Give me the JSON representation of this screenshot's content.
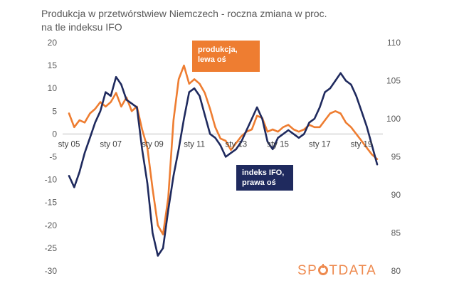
{
  "title_line1": "Produkcja  w przetwórstwiew Niemczech - roczna zmiana w proc.",
  "title_line2": "na tle indeksu IFO",
  "callouts": {
    "orange_line1": "produkcja,",
    "orange_line2": "lewa oś",
    "navy_line1": "indeks IFO,",
    "navy_line2": "prawa oś"
  },
  "logo": {
    "part1": "SP",
    "part2": "TDATA"
  },
  "colors": {
    "production": "#ee7d31",
    "ifo": "#1f2a5e",
    "zero_line": "#bfbfbf"
  },
  "chart_data": {
    "type": "line",
    "title": "Produkcja  w przetwórstwiew Niemczech - roczna zmiana w proc. na tle indeksu IFO",
    "x_ticks": [
      "sty 05",
      "sty 07",
      "sty 09",
      "sty 11",
      "sty 13",
      "sty 15",
      "sty 17",
      "sty 19"
    ],
    "x_range": [
      2005.0,
      2019.75
    ],
    "left_axis": {
      "ylim": [
        -30,
        20
      ],
      "ticks": [
        20,
        15,
        10,
        5,
        0,
        -5,
        -10,
        -15,
        -20,
        -25,
        -30
      ]
    },
    "right_axis": {
      "ylim": [
        80,
        110
      ],
      "ticks": [
        110,
        105,
        100,
        95,
        90,
        85,
        80
      ]
    },
    "grid": false,
    "series": [
      {
        "name": "produkcja, lewa oś",
        "axis": "left",
        "points": [
          [
            2005.0,
            4.5
          ],
          [
            2005.25,
            1.5
          ],
          [
            2005.5,
            3.0
          ],
          [
            2005.75,
            2.5
          ],
          [
            2006.0,
            4.5
          ],
          [
            2006.25,
            5.5
          ],
          [
            2006.5,
            7.0
          ],
          [
            2006.75,
            6.0
          ],
          [
            2007.0,
            7.0
          ],
          [
            2007.25,
            9.0
          ],
          [
            2007.5,
            6.0
          ],
          [
            2007.75,
            8.0
          ],
          [
            2008.0,
            5.0
          ],
          [
            2008.25,
            6.0
          ],
          [
            2008.5,
            1.0
          ],
          [
            2008.75,
            -3.0
          ],
          [
            2009.0,
            -12.0
          ],
          [
            2009.25,
            -20.0
          ],
          [
            2009.5,
            -22.0
          ],
          [
            2009.75,
            -14.0
          ],
          [
            2010.0,
            3.0
          ],
          [
            2010.25,
            12.0
          ],
          [
            2010.5,
            15.0
          ],
          [
            2010.75,
            11.0
          ],
          [
            2011.0,
            12.0
          ],
          [
            2011.25,
            11.0
          ],
          [
            2011.5,
            9.0
          ],
          [
            2011.75,
            5.5
          ],
          [
            2012.0,
            1.5
          ],
          [
            2012.25,
            -1.0
          ],
          [
            2012.5,
            -1.5
          ],
          [
            2012.75,
            -3.5
          ],
          [
            2013.0,
            -2.0
          ],
          [
            2013.25,
            -0.5
          ],
          [
            2013.5,
            0.5
          ],
          [
            2013.75,
            1.0
          ],
          [
            2014.0,
            4.0
          ],
          [
            2014.25,
            3.5
          ],
          [
            2014.5,
            0.5
          ],
          [
            2014.75,
            1.0
          ],
          [
            2015.0,
            0.5
          ],
          [
            2015.25,
            1.5
          ],
          [
            2015.5,
            2.0
          ],
          [
            2015.75,
            1.0
          ],
          [
            2016.0,
            0.5
          ],
          [
            2016.25,
            1.0
          ],
          [
            2016.5,
            2.0
          ],
          [
            2016.75,
            1.5
          ],
          [
            2017.0,
            1.5
          ],
          [
            2017.25,
            3.0
          ],
          [
            2017.5,
            4.5
          ],
          [
            2017.75,
            5.0
          ],
          [
            2018.0,
            4.5
          ],
          [
            2018.25,
            2.5
          ],
          [
            2018.5,
            1.5
          ],
          [
            2018.75,
            0.0
          ],
          [
            2019.0,
            -1.5
          ],
          [
            2019.25,
            -3.0
          ],
          [
            2019.5,
            -4.5
          ],
          [
            2019.75,
            -5.5
          ]
        ]
      },
      {
        "name": "indeks IFO, prawa oś",
        "axis": "right",
        "points": [
          [
            2005.0,
            92.5
          ],
          [
            2005.25,
            91.0
          ],
          [
            2005.5,
            93.0
          ],
          [
            2005.75,
            95.5
          ],
          [
            2006.0,
            97.5
          ],
          [
            2006.25,
            99.5
          ],
          [
            2006.5,
            101.0
          ],
          [
            2006.75,
            103.5
          ],
          [
            2007.0,
            103.0
          ],
          [
            2007.25,
            105.5
          ],
          [
            2007.5,
            104.5
          ],
          [
            2007.75,
            102.5
          ],
          [
            2008.0,
            102.0
          ],
          [
            2008.25,
            101.5
          ],
          [
            2008.5,
            96.0
          ],
          [
            2008.75,
            91.5
          ],
          [
            2009.0,
            85.0
          ],
          [
            2009.25,
            82.0
          ],
          [
            2009.5,
            83.0
          ],
          [
            2009.75,
            88.0
          ],
          [
            2010.0,
            92.5
          ],
          [
            2010.25,
            96.0
          ],
          [
            2010.5,
            100.0
          ],
          [
            2010.75,
            103.5
          ],
          [
            2011.0,
            104.0
          ],
          [
            2011.25,
            103.0
          ],
          [
            2011.5,
            100.5
          ],
          [
            2011.75,
            98.0
          ],
          [
            2012.0,
            97.5
          ],
          [
            2012.25,
            96.5
          ],
          [
            2012.5,
            95.0
          ],
          [
            2012.75,
            95.5
          ],
          [
            2013.0,
            96.0
          ],
          [
            2013.25,
            97.0
          ],
          [
            2013.5,
            98.5
          ],
          [
            2013.75,
            100.0
          ],
          [
            2014.0,
            101.5
          ],
          [
            2014.25,
            100.0
          ],
          [
            2014.5,
            97.0
          ],
          [
            2014.75,
            96.0
          ],
          [
            2015.0,
            97.5
          ],
          [
            2015.25,
            98.0
          ],
          [
            2015.5,
            98.5
          ],
          [
            2015.75,
            98.0
          ],
          [
            2016.0,
            97.5
          ],
          [
            2016.25,
            98.0
          ],
          [
            2016.5,
            99.5
          ],
          [
            2016.75,
            100.0
          ],
          [
            2017.0,
            101.5
          ],
          [
            2017.25,
            103.5
          ],
          [
            2017.5,
            104.0
          ],
          [
            2017.75,
            105.0
          ],
          [
            2018.0,
            106.0
          ],
          [
            2018.25,
            105.0
          ],
          [
            2018.5,
            104.5
          ],
          [
            2018.75,
            103.0
          ],
          [
            2019.0,
            101.0
          ],
          [
            2019.25,
            99.0
          ],
          [
            2019.5,
            96.5
          ],
          [
            2019.75,
            94.0
          ]
        ]
      }
    ]
  }
}
